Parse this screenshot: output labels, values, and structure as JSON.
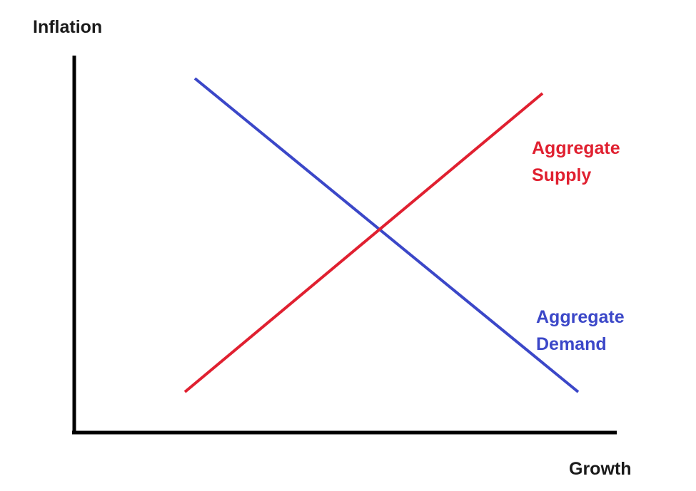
{
  "diagram": {
    "y_axis_label": "Inflation",
    "x_axis_label": "Growth",
    "supply": {
      "label_line1": "Aggregate",
      "label_line2": "Supply",
      "color": "#e02030"
    },
    "demand": {
      "label_line1": "Aggregate",
      "label_line2": "Demand",
      "color": "#3b47c8"
    },
    "axis_color": "#000000"
  }
}
